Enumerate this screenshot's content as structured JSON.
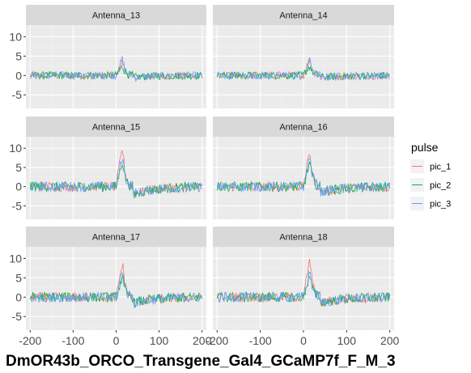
{
  "chart_data": {
    "type": "line",
    "title": "DmOR43b_ORCO_Transgene_Gal4_GCaMP7f_F_M_3",
    "xlabel": "",
    "ylabel": "",
    "xlim": [
      -210,
      210
    ],
    "ylim": [
      -8.5,
      13
    ],
    "x_ticks": [
      -200,
      -100,
      0,
      100,
      200
    ],
    "x_tick_labels": [
      "-200",
      "-100",
      "0",
      "100",
      "200"
    ],
    "y_ticks": [
      -5,
      0,
      5,
      10
    ],
    "y_tick_labels": [
      "-5",
      "0",
      "5",
      "10"
    ],
    "grid": true,
    "facet_layout": {
      "rows": 3,
      "cols": 2
    },
    "legend": {
      "title": "pulse",
      "position": "right",
      "entries": [
        {
          "name": "pic_1",
          "color": "#F8766D"
        },
        {
          "name": "pic_2",
          "color": "#00BA38"
        },
        {
          "name": "pic_3",
          "color": "#619CFF"
        }
      ]
    },
    "x_sampling": {
      "start": -200,
      "end": 200,
      "step": 2
    },
    "panels": [
      {
        "label": "Antenna_13",
        "peaks": {
          "pic_1": 3.5,
          "pic_2": 2.5,
          "pic_3": 4.5
        },
        "noise": 1.0,
        "undershoot": -0.5
      },
      {
        "label": "Antenna_14",
        "peaks": {
          "pic_1": 4.5,
          "pic_2": 2.5,
          "pic_3": 4.0
        },
        "noise": 1.0,
        "undershoot": -0.5
      },
      {
        "label": "Antenna_15",
        "peaks": {
          "pic_1": 10.5,
          "pic_2": 7.0,
          "pic_3": 8.0
        },
        "noise": 1.3,
        "undershoot": -2.0
      },
      {
        "label": "Antenna_16",
        "peaks": {
          "pic_1": 9.5,
          "pic_2": 6.5,
          "pic_3": 8.0
        },
        "noise": 1.3,
        "undershoot": -1.5
      },
      {
        "label": "Antenna_17",
        "peaks": {
          "pic_1": 9.0,
          "pic_2": 5.5,
          "pic_3": 6.5
        },
        "noise": 1.3,
        "undershoot": -1.5
      },
      {
        "label": "Antenna_18",
        "peaks": {
          "pic_1": 10.0,
          "pic_2": 6.0,
          "pic_3": 7.0
        },
        "noise": 1.3,
        "undershoot": -1.5
      }
    ]
  },
  "colors": {
    "panel_background": "#EBEBEB",
    "strip_background": "#D9D9D9",
    "grid_major": "#FFFFFF",
    "grid_minor": "#F2F2F2"
  }
}
